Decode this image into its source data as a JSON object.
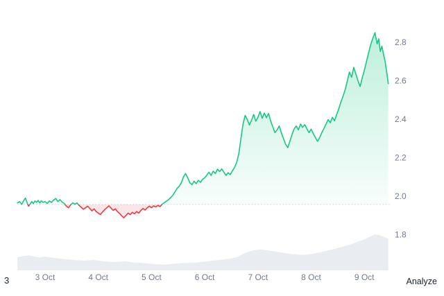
{
  "footer": {
    "left_text": "3",
    "analyze_label": "Analyze"
  },
  "chart_data": {
    "type": "line",
    "title": "",
    "xlabel": "",
    "ylabel": "",
    "legend": false,
    "grid": false,
    "baseline_value": 1.957,
    "y_range": [
      1.74,
      2.9
    ],
    "x_range_days": [
      -0.52,
      6.45
    ],
    "y_ticks": [
      {
        "value": 2.8,
        "label": "2.8"
      },
      {
        "value": 2.6,
        "label": "2.6"
      },
      {
        "value": 2.4,
        "label": "2.4"
      },
      {
        "value": 2.2,
        "label": "2.2"
      },
      {
        "value": 2.0,
        "label": "2.0"
      },
      {
        "value": 1.8,
        "label": "1.8"
      }
    ],
    "x_ticks": [
      {
        "t": 0,
        "label": "3 Oct"
      },
      {
        "t": 1,
        "label": "4 Oct"
      },
      {
        "t": 2,
        "label": "5 Oct"
      },
      {
        "t": 3,
        "label": "6 Oct"
      },
      {
        "t": 4,
        "label": "7 Oct"
      },
      {
        "t": 5,
        "label": "8 Oct"
      },
      {
        "t": 6,
        "label": "9 Oct"
      }
    ],
    "colors": {
      "up": "#16c784",
      "down": "#ea3943",
      "up_fill": "#16c784",
      "down_fill": "rgba(234,57,67,0.13)",
      "volume": "#e9edf1",
      "baseline": "#c9ced6",
      "axis_text": "#707a8a"
    },
    "series": [
      {
        "name": "price",
        "points": [
          [
            -0.52,
            1.965
          ],
          [
            -0.48,
            1.972
          ],
          [
            -0.44,
            1.958
          ],
          [
            -0.4,
            1.978
          ],
          [
            -0.37,
            1.99
          ],
          [
            -0.34,
            1.968
          ],
          [
            -0.31,
            1.948
          ],
          [
            -0.28,
            1.96
          ],
          [
            -0.25,
            1.972
          ],
          [
            -0.22,
            1.962
          ],
          [
            -0.19,
            1.975
          ],
          [
            -0.16,
            1.968
          ],
          [
            -0.13,
            1.978
          ],
          [
            -0.1,
            1.965
          ],
          [
            -0.07,
            1.975
          ],
          [
            -0.04,
            1.968
          ],
          [
            0.0,
            1.972
          ],
          [
            0.04,
            1.962
          ],
          [
            0.08,
            1.975
          ],
          [
            0.12,
            1.968
          ],
          [
            0.16,
            1.98
          ],
          [
            0.2,
            1.988
          ],
          [
            0.24,
            1.972
          ],
          [
            0.28,
            1.982
          ],
          [
            0.32,
            1.97
          ],
          [
            0.36,
            1.962
          ],
          [
            0.4,
            1.948
          ],
          [
            0.44,
            1.94
          ],
          [
            0.48,
            1.955
          ],
          [
            0.52,
            1.965
          ],
          [
            0.56,
            1.958
          ],
          [
            0.6,
            1.965
          ],
          [
            0.64,
            1.952
          ],
          [
            0.68,
            1.942
          ],
          [
            0.72,
            1.932
          ],
          [
            0.76,
            1.94
          ],
          [
            0.8,
            1.948
          ],
          [
            0.84,
            1.936
          ],
          [
            0.88,
            1.924
          ],
          [
            0.92,
            1.934
          ],
          [
            0.96,
            1.92
          ],
          [
            1.0,
            1.912
          ],
          [
            1.04,
            1.905
          ],
          [
            1.08,
            1.918
          ],
          [
            1.12,
            1.93
          ],
          [
            1.16,
            1.94
          ],
          [
            1.2,
            1.95
          ],
          [
            1.24,
            1.938
          ],
          [
            1.28,
            1.926
          ],
          [
            1.32,
            1.934
          ],
          [
            1.36,
            1.92
          ],
          [
            1.4,
            1.91
          ],
          [
            1.44,
            1.898
          ],
          [
            1.48,
            1.888
          ],
          [
            1.52,
            1.9
          ],
          [
            1.56,
            1.912
          ],
          [
            1.6,
            1.904
          ],
          [
            1.64,
            1.916
          ],
          [
            1.68,
            1.908
          ],
          [
            1.72,
            1.92
          ],
          [
            1.76,
            1.912
          ],
          [
            1.8,
            1.926
          ],
          [
            1.84,
            1.936
          ],
          [
            1.88,
            1.928
          ],
          [
            1.92,
            1.94
          ],
          [
            1.96,
            1.948
          ],
          [
            2.0,
            1.94
          ],
          [
            2.04,
            1.95
          ],
          [
            2.08,
            1.944
          ],
          [
            2.12,
            1.952
          ],
          [
            2.16,
            1.946
          ],
          [
            2.2,
            1.958
          ],
          [
            2.24,
            1.966
          ],
          [
            2.28,
            1.974
          ],
          [
            2.32,
            1.982
          ],
          [
            2.36,
            1.992
          ],
          [
            2.4,
            2.005
          ],
          [
            2.44,
            2.022
          ],
          [
            2.48,
            2.04
          ],
          [
            2.52,
            2.052
          ],
          [
            2.56,
            2.07
          ],
          [
            2.6,
            2.1
          ],
          [
            2.64,
            2.118
          ],
          [
            2.68,
            2.095
          ],
          [
            2.72,
            2.07
          ],
          [
            2.76,
            2.06
          ],
          [
            2.8,
            2.078
          ],
          [
            2.84,
            2.065
          ],
          [
            2.88,
            2.082
          ],
          [
            2.92,
            2.072
          ],
          [
            2.96,
            2.088
          ],
          [
            3.0,
            2.095
          ],
          [
            3.04,
            2.11
          ],
          [
            3.08,
            2.125
          ],
          [
            3.12,
            2.108
          ],
          [
            3.16,
            2.13
          ],
          [
            3.2,
            2.118
          ],
          [
            3.24,
            2.14
          ],
          [
            3.28,
            2.128
          ],
          [
            3.32,
            2.142
          ],
          [
            3.36,
            2.125
          ],
          [
            3.4,
            2.108
          ],
          [
            3.44,
            2.122
          ],
          [
            3.48,
            2.112
          ],
          [
            3.52,
            2.132
          ],
          [
            3.56,
            2.15
          ],
          [
            3.6,
            2.175
          ],
          [
            3.64,
            2.22
          ],
          [
            3.68,
            2.3
          ],
          [
            3.72,
            2.375
          ],
          [
            3.76,
            2.42
          ],
          [
            3.8,
            2.398
          ],
          [
            3.84,
            2.37
          ],
          [
            3.88,
            2.395
          ],
          [
            3.92,
            2.425
          ],
          [
            3.96,
            2.39
          ],
          [
            4.0,
            2.41
          ],
          [
            4.04,
            2.44
          ],
          [
            4.08,
            2.405
          ],
          [
            4.12,
            2.432
          ],
          [
            4.16,
            2.408
          ],
          [
            4.2,
            2.43
          ],
          [
            4.24,
            2.39
          ],
          [
            4.28,
            2.36
          ],
          [
            4.32,
            2.33
          ],
          [
            4.36,
            2.345
          ],
          [
            4.4,
            2.365
          ],
          [
            4.44,
            2.33
          ],
          [
            4.48,
            2.3
          ],
          [
            4.52,
            2.27
          ],
          [
            4.56,
            2.252
          ],
          [
            4.6,
            2.285
          ],
          [
            4.64,
            2.32
          ],
          [
            4.68,
            2.35
          ],
          [
            4.72,
            2.365
          ],
          [
            4.76,
            2.345
          ],
          [
            4.8,
            2.375
          ],
          [
            4.84,
            2.358
          ],
          [
            4.88,
            2.372
          ],
          [
            4.92,
            2.35
          ],
          [
            4.96,
            2.33
          ],
          [
            5.0,
            2.348
          ],
          [
            5.04,
            2.325
          ],
          [
            5.08,
            2.305
          ],
          [
            5.12,
            2.285
          ],
          [
            5.16,
            2.305
          ],
          [
            5.2,
            2.33
          ],
          [
            5.24,
            2.352
          ],
          [
            5.28,
            2.375
          ],
          [
            5.32,
            2.398
          ],
          [
            5.36,
            2.382
          ],
          [
            5.4,
            2.41
          ],
          [
            5.44,
            2.392
          ],
          [
            5.48,
            2.425
          ],
          [
            5.52,
            2.455
          ],
          [
            5.56,
            2.49
          ],
          [
            5.6,
            2.52
          ],
          [
            5.64,
            2.555
          ],
          [
            5.68,
            2.6
          ],
          [
            5.72,
            2.645
          ],
          [
            5.76,
            2.618
          ],
          [
            5.8,
            2.67
          ],
          [
            5.84,
            2.635
          ],
          [
            5.88,
            2.6
          ],
          [
            5.92,
            2.57
          ],
          [
            5.96,
            2.615
          ],
          [
            6.0,
            2.655
          ],
          [
            6.04,
            2.7
          ],
          [
            6.08,
            2.745
          ],
          [
            6.12,
            2.788
          ],
          [
            6.16,
            2.822
          ],
          [
            6.2,
            2.85
          ],
          [
            6.24,
            2.792
          ],
          [
            6.27,
            2.818
          ],
          [
            6.3,
            2.752
          ],
          [
            6.33,
            2.78
          ],
          [
            6.36,
            2.738
          ],
          [
            6.39,
            2.7
          ],
          [
            6.42,
            2.645
          ],
          [
            6.45,
            2.585
          ]
        ]
      }
    ],
    "volume": {
      "name": "volume",
      "unit": "relative",
      "points": [
        [
          -0.52,
          0.36
        ],
        [
          -0.4,
          0.4
        ],
        [
          -0.3,
          0.42
        ],
        [
          -0.2,
          0.38
        ],
        [
          -0.1,
          0.36
        ],
        [
          0.0,
          0.38
        ],
        [
          0.15,
          0.35
        ],
        [
          0.3,
          0.32
        ],
        [
          0.45,
          0.3
        ],
        [
          0.6,
          0.28
        ],
        [
          0.75,
          0.27
        ],
        [
          0.9,
          0.29
        ],
        [
          1.05,
          0.26
        ],
        [
          1.2,
          0.24
        ],
        [
          1.35,
          0.23
        ],
        [
          1.5,
          0.25
        ],
        [
          1.65,
          0.22
        ],
        [
          1.8,
          0.21
        ],
        [
          1.95,
          0.19
        ],
        [
          2.1,
          0.17
        ],
        [
          2.25,
          0.16
        ],
        [
          2.4,
          0.18
        ],
        [
          2.55,
          0.2
        ],
        [
          2.7,
          0.21
        ],
        [
          2.85,
          0.22
        ],
        [
          3.0,
          0.24
        ],
        [
          3.15,
          0.27
        ],
        [
          3.3,
          0.29
        ],
        [
          3.45,
          0.32
        ],
        [
          3.6,
          0.36
        ],
        [
          3.75,
          0.48
        ],
        [
          3.9,
          0.55
        ],
        [
          4.05,
          0.58
        ],
        [
          4.2,
          0.55
        ],
        [
          4.35,
          0.52
        ],
        [
          4.5,
          0.48
        ],
        [
          4.65,
          0.45
        ],
        [
          4.8,
          0.43
        ],
        [
          4.95,
          0.44
        ],
        [
          5.1,
          0.48
        ],
        [
          5.25,
          0.53
        ],
        [
          5.4,
          0.58
        ],
        [
          5.55,
          0.64
        ],
        [
          5.7,
          0.7
        ],
        [
          5.85,
          0.78
        ],
        [
          6.0,
          0.86
        ],
        [
          6.1,
          0.93
        ],
        [
          6.2,
          1.0
        ],
        [
          6.3,
          0.97
        ],
        [
          6.4,
          0.91
        ],
        [
          6.45,
          0.88
        ]
      ]
    }
  }
}
